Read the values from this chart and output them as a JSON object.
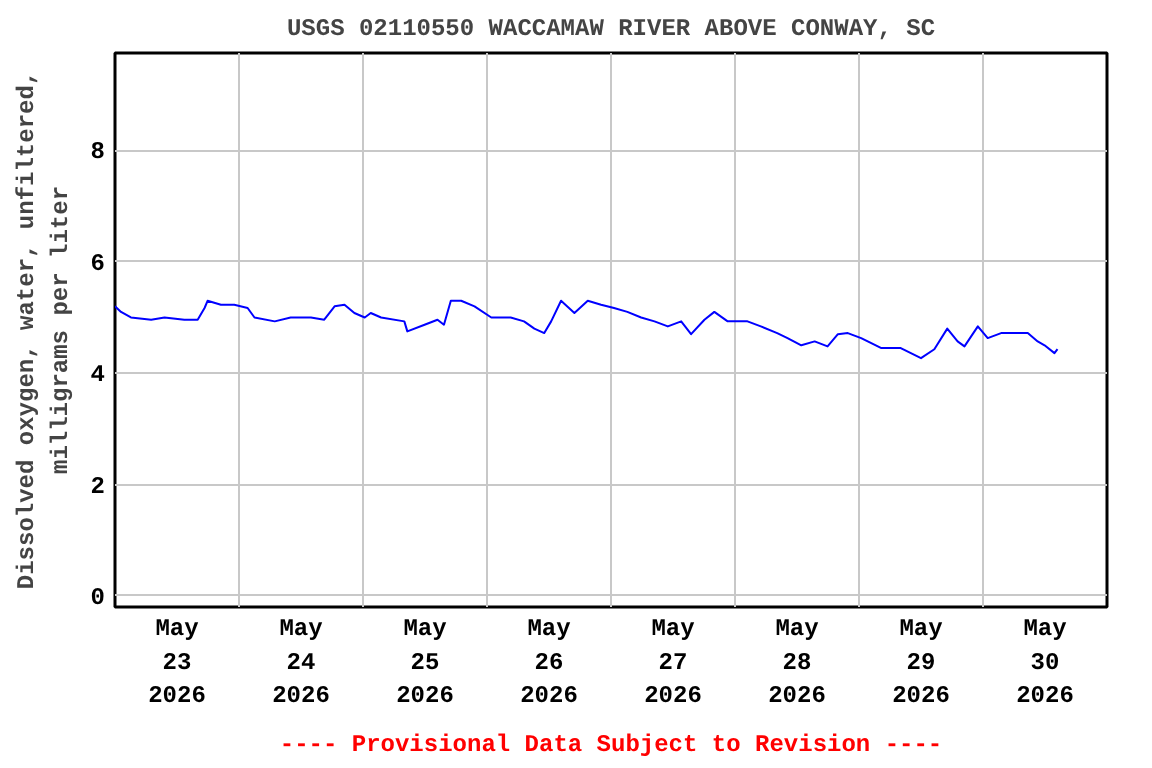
{
  "chart_data": {
    "type": "line",
    "title": "USGS 02110550 WACCAMAW RIVER ABOVE CONWAY, SC",
    "ylabel": "Dissolved oxygen, water, unfiltered,\nmilligrams per liter",
    "annotations": [
      "---- Provisional Data Subject to Revision ----"
    ],
    "xlim": [
      "2026-05-23T00:00",
      "2026-05-31T00:00"
    ],
    "xticks": [
      {
        "value": "2026-05-23T00:00",
        "label": null
      },
      {
        "value": "2026-05-23T12:00",
        "label": "May\n23\n2026"
      },
      {
        "value": "2026-05-24T00:00",
        "label": null
      },
      {
        "value": "2026-05-24T12:00",
        "label": "May\n24\n2026"
      },
      {
        "value": "2026-05-25T00:00",
        "label": null
      },
      {
        "value": "2026-05-25T12:00",
        "label": "May\n25\n2026"
      },
      {
        "value": "2026-05-26T00:00",
        "label": null
      },
      {
        "value": "2026-05-26T12:00",
        "label": "May\n26\n2026"
      },
      {
        "value": "2026-05-27T00:00",
        "label": null
      },
      {
        "value": "2026-05-27T12:00",
        "label": "May\n27\n2026"
      },
      {
        "value": "2026-05-28T00:00",
        "label": null
      },
      {
        "value": "2026-05-28T12:00",
        "label": "May\n28\n2026"
      },
      {
        "value": "2026-05-29T00:00",
        "label": null
      },
      {
        "value": "2026-05-29T12:00",
        "label": "May\n29\n2026"
      },
      {
        "value": "2026-05-30T00:00",
        "label": null
      },
      {
        "value": "2026-05-30T12:00",
        "label": "May\n30\n2026"
      },
      {
        "value": "2026-05-31T00:00",
        "label": null
      }
    ],
    "ylim": [
      -0.2,
      9.75
    ],
    "yticks": [
      0,
      2,
      4,
      6,
      8
    ],
    "grid": true,
    "line_style": "solid",
    "series": [
      {
        "color": "#0000ff",
        "x": [
          "2026-05-23T00:00",
          "2026-05-23T01:10",
          "2026-05-23T03:05",
          "2026-05-23T07:00",
          "2026-05-23T09:35",
          "2026-05-23T13:25",
          "2026-05-23T16:00",
          "2026-05-23T17:20",
          "2026-05-23T17:55",
          "2026-05-23T20:30",
          "2026-05-23T23:05",
          "2026-05-24T01:40",
          "2026-05-24T03:00",
          "2026-05-24T06:55",
          "2026-05-24T10:00",
          "2026-05-24T13:55",
          "2026-05-24T16:30",
          "2026-05-24T18:30",
          "2026-05-24T20:25",
          "2026-05-24T22:20",
          "2026-05-25T00:20",
          "2026-05-25T01:30",
          "2026-05-25T03:30",
          "2026-05-25T08:00",
          "2026-05-25T08:35",
          "2026-05-25T11:55",
          "2026-05-25T14:25",
          "2026-05-25T15:40",
          "2026-05-25T17:00",
          "2026-05-25T19:00",
          "2026-05-25T21:35",
          "2026-05-26T00:50",
          "2026-05-26T04:35",
          "2026-05-26T07:10",
          "2026-05-26T09:10",
          "2026-05-26T11:05",
          "2026-05-26T12:25",
          "2026-05-26T14:20",
          "2026-05-26T16:55",
          "2026-05-26T19:30",
          "2026-05-26T22:05",
          "2026-05-27T00:35",
          "2026-05-27T03:10",
          "2026-05-27T05:50",
          "2026-05-27T08:25",
          "2026-05-27T11:00",
          "2026-05-27T13:35",
          "2026-05-27T15:30",
          "2026-05-27T18:05",
          "2026-05-27T20:00",
          "2026-05-27T22:35",
          "2026-05-28T02:25",
          "2026-05-28T05:00",
          "2026-05-28T08:10",
          "2026-05-28T10:10",
          "2026-05-28T12:50",
          "2026-05-28T15:25",
          "2026-05-28T17:55",
          "2026-05-28T19:55",
          "2026-05-28T21:50",
          "2026-05-29T00:25",
          "2026-05-29T04:20",
          "2026-05-29T08:05",
          "2026-05-29T12:00",
          "2026-05-29T14:35",
          "2026-05-29T17:05",
          "2026-05-29T19:05",
          "2026-05-29T20:25",
          "2026-05-29T23:00",
          "2026-05-30T00:55",
          "2026-05-30T03:30",
          "2026-05-30T08:40",
          "2026-05-30T10:35",
          "2026-05-30T11:55",
          "2026-05-30T13:50",
          "2026-05-30T14:25"
        ],
        "values": [
          5.2,
          5.1,
          5.0,
          4.96,
          5.0,
          4.96,
          4.96,
          5.17,
          5.3,
          5.23,
          5.23,
          5.17,
          5.0,
          4.93,
          5.0,
          5.0,
          4.96,
          5.2,
          5.23,
          5.08,
          5.0,
          5.08,
          5.0,
          4.93,
          4.75,
          4.87,
          4.96,
          4.87,
          5.3,
          5.3,
          5.2,
          5.0,
          5.0,
          4.93,
          4.8,
          4.72,
          4.93,
          5.3,
          5.08,
          5.3,
          5.23,
          5.17,
          5.1,
          5.0,
          4.93,
          4.84,
          4.93,
          4.7,
          4.96,
          5.1,
          4.93,
          4.93,
          4.84,
          4.72,
          4.63,
          4.5,
          4.57,
          4.48,
          4.7,
          4.72,
          4.63,
          4.45,
          4.45,
          4.27,
          4.43,
          4.8,
          4.57,
          4.48,
          4.84,
          4.63,
          4.72,
          4.72,
          4.57,
          4.5,
          4.36,
          4.43
        ]
      }
    ]
  }
}
